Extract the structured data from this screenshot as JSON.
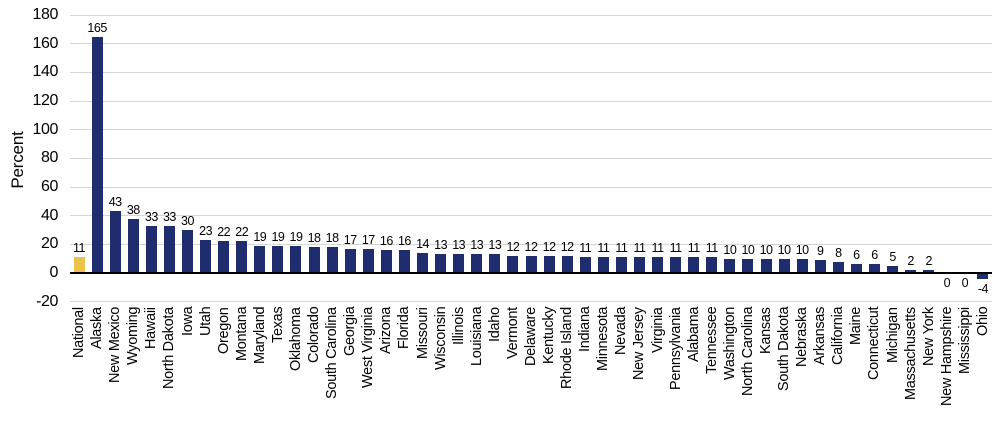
{
  "chart_data": {
    "type": "bar",
    "title": "",
    "xlabel": "",
    "ylabel": "Percent",
    "ylim": [
      -20,
      180
    ],
    "yticks": [
      180,
      160,
      140,
      120,
      100,
      80,
      60,
      40,
      20,
      0,
      -20
    ],
    "grid": "horizontal",
    "legend": "none",
    "categories": [
      "National",
      "Alaska",
      "New Mexico",
      "Wyoming",
      "Hawaii",
      "North Dakota",
      "Iowa",
      "Utah",
      "Oregon",
      "Montana",
      "Maryland",
      "Texas",
      "Oklahoma",
      "Colorado",
      "South Carolina",
      "Georgia",
      "West Virginia",
      "Arizona",
      "Florida",
      "Missouri",
      "Wisconsin",
      "Illinois",
      "Louisiana",
      "Idaho",
      "Vermont",
      "Delaware",
      "Kentucky",
      "Rhode Island",
      "Indiana",
      "Minnesota",
      "Nevada",
      "New Jersey",
      "Virginia",
      "Pennsylvania",
      "Alabama",
      "Tennessee",
      "Washington",
      "North Carolina",
      "Kansas",
      "South Dakota",
      "Nebraska",
      "Arkansas",
      "California",
      "Maine",
      "Connecticut",
      "Michigan",
      "Massachusetts",
      "New York",
      "New Hampshire",
      "Mississippi",
      "Ohio"
    ],
    "values": [
      11,
      165,
      43,
      38,
      33,
      33,
      30,
      23,
      22,
      22,
      19,
      19,
      19,
      18,
      18,
      17,
      17,
      16,
      16,
      14,
      13,
      13,
      13,
      13,
      12,
      12,
      12,
      12,
      11,
      11,
      11,
      11,
      11,
      11,
      11,
      11,
      10,
      10,
      10,
      10,
      10,
      9,
      8,
      6,
      6,
      5,
      2,
      2,
      0,
      0,
      -4
    ],
    "highlight": {
      "index": 0,
      "label": "National"
    },
    "colors": {
      "bar": "#1F2C6E",
      "highlight_bar": "#EDC24A",
      "gridline": "#D6D6D6",
      "axis": "#000000",
      "text": "#000000"
    }
  }
}
